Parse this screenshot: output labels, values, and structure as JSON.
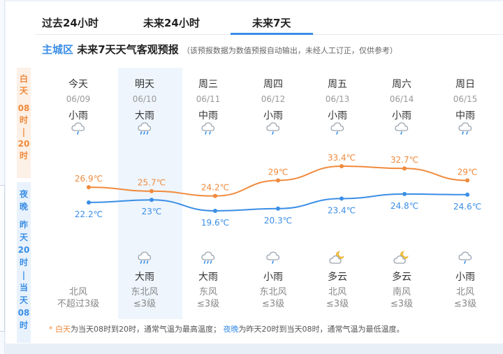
{
  "tabs": [
    {
      "label": "过去24小时",
      "active": false
    },
    {
      "label": "未来24小时",
      "active": false
    },
    {
      "label": "未来7天",
      "active": true
    }
  ],
  "heading": {
    "area": "主城区",
    "title": "未来7天天气客观预报",
    "note": "（该预报数据为数值预报自动输出，未经人工订正，仅供参考）"
  },
  "day_band": [
    "白",
    "天",
    "",
    "08",
    "时",
    "|",
    "20",
    "时"
  ],
  "night_band": [
    "夜",
    "晚",
    "",
    "昨",
    "天",
    "20",
    "时",
    "|",
    "当",
    "天",
    "08",
    "时"
  ],
  "days": [
    {
      "name": "今天",
      "date": "06/09",
      "day_weather": "小雨",
      "day_icon": "light-rain-icon",
      "night_weather": "",
      "night_icon": "",
      "wind_dir": "北风",
      "wind_level": "不超过3级"
    },
    {
      "name": "明天",
      "date": "06/10",
      "day_weather": "大雨",
      "day_icon": "heavy-rain-icon",
      "night_weather": "大雨",
      "night_icon": "heavy-rain-icon",
      "wind_dir": "东北风",
      "wind_level": "≤3级"
    },
    {
      "name": "周三",
      "date": "06/11",
      "day_weather": "中雨",
      "day_icon": "moderate-rain-icon",
      "night_weather": "大雨",
      "night_icon": "heavy-rain-icon",
      "wind_dir": "东风",
      "wind_level": "≤3级"
    },
    {
      "name": "周四",
      "date": "06/12",
      "day_weather": "小雨",
      "day_icon": "light-rain-icon",
      "night_weather": "小雨",
      "night_icon": "light-rain-icon",
      "wind_dir": "东北风",
      "wind_level": "≤3级"
    },
    {
      "name": "周五",
      "date": "06/13",
      "day_weather": "小雨",
      "day_icon": "light-rain-icon",
      "night_weather": "多云",
      "night_icon": "partly-cloudy-night-icon",
      "wind_dir": "北风",
      "wind_level": "≤3级"
    },
    {
      "name": "周六",
      "date": "06/14",
      "day_weather": "小雨",
      "day_icon": "light-rain-icon",
      "night_weather": "多云",
      "night_icon": "partly-cloudy-night-icon",
      "wind_dir": "南风",
      "wind_level": "≤3级"
    },
    {
      "name": "周日",
      "date": "06/15",
      "day_weather": "中雨",
      "day_icon": "moderate-rain-icon",
      "night_weather": "小雨",
      "night_icon": "light-rain-icon",
      "wind_dir": "北风",
      "wind_level": "≤3级"
    }
  ],
  "chart_data": {
    "type": "line",
    "categories": [
      "06/09",
      "06/10",
      "06/11",
      "06/12",
      "06/13",
      "06/14",
      "06/15"
    ],
    "series": [
      {
        "name": "",
        "values": [
          26.9,
          25.7,
          24.2,
          29,
          33.4,
          32.7,
          29
        ],
        "labels": [
          "26.9℃",
          "25.7℃",
          "24.2℃",
          "29℃",
          "33.4℃",
          "32.7℃",
          "29℃"
        ]
      },
      {
        "name": "",
        "values": [
          22.2,
          23,
          19.6,
          20.3,
          23.4,
          24.8,
          24.6
        ],
        "labels": [
          "22.2℃",
          "23℃",
          "19.6℃",
          "20.3℃",
          "23.4℃",
          "24.8℃",
          "24.6℃"
        ]
      }
    ],
    "title": "",
    "xlabel": "",
    "ylabel": "",
    "grid": false,
    "colors": [
      "#f08a3c",
      "#3a8ee6"
    ]
  },
  "footnote": {
    "star": "*",
    "day_term": "白天",
    "day_text": "为当天08时到20时，通常气温为最高温度；",
    "night_term": "夜晚",
    "night_text": "为昨天20时到当天08时，通常气温为最低温度。"
  },
  "colors": {
    "accent": "#3a8ee6",
    "day": "#f08a3c",
    "night": "#3a8ee6",
    "highlight": "#eef5fd"
  }
}
